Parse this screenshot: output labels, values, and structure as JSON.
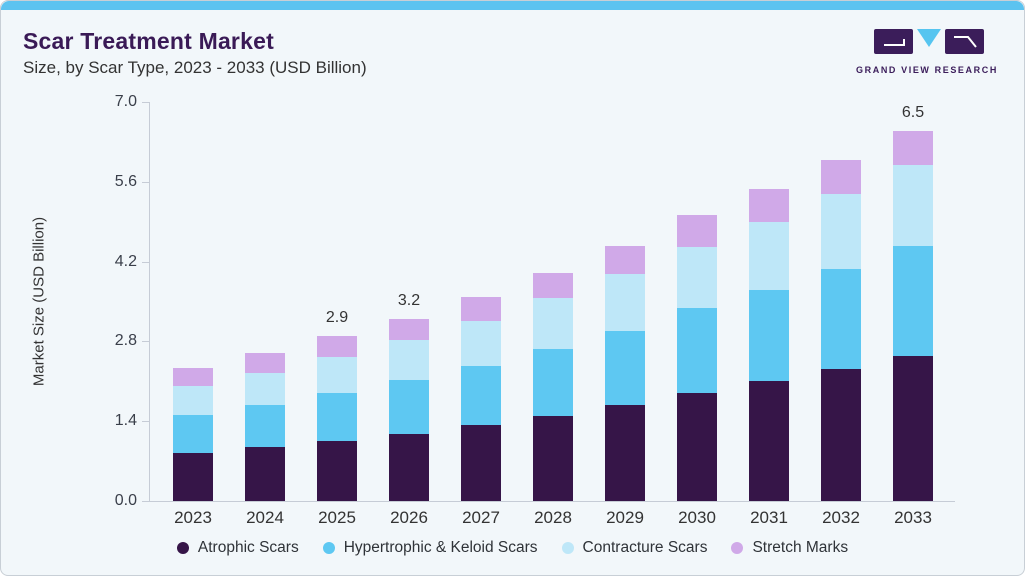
{
  "header": {
    "title": "Scar Treatment Market",
    "subtitle": "Size, by Scar Type, 2023 - 2033 (USD Billion)",
    "brand": {
      "name": "GRAND VIEW RESEARCH"
    }
  },
  "theme": {
    "accent_bar": "#5CC3F0",
    "card_bg": "#F2F7FA",
    "title_color": "#3A1A56",
    "brand_purple": "#3B1D5A",
    "brand_blue": "#56C5F0",
    "axis_color": "#C6CCD6",
    "text_color": "#333333"
  },
  "chart_data": {
    "type": "bar",
    "stacked": true,
    "title": "Scar Treatment Market Size, by Scar Type, 2023 - 2033 (USD Billion)",
    "xlabel": "",
    "ylabel": "Market Size (USD Billion)",
    "categories": [
      "2023",
      "2024",
      "2025",
      "2026",
      "2027",
      "2028",
      "2029",
      "2030",
      "2031",
      "2032",
      "2033"
    ],
    "series": [
      {
        "name": "Atrophic Scars",
        "color": "#361548",
        "values": [
          0.85,
          0.94,
          1.05,
          1.18,
          1.33,
          1.5,
          1.69,
          1.9,
          2.1,
          2.31,
          2.55
        ]
      },
      {
        "name": "Hypertrophic & Keloid Scars",
        "color": "#5EC8F2",
        "values": [
          0.66,
          0.75,
          0.84,
          0.95,
          1.03,
          1.16,
          1.3,
          1.49,
          1.6,
          1.76,
          1.93
        ]
      },
      {
        "name": "Contracture Scars",
        "color": "#BEE7F8",
        "values": [
          0.51,
          0.56,
          0.64,
          0.69,
          0.8,
          0.9,
          0.99,
          1.06,
          1.2,
          1.31,
          1.41
        ]
      },
      {
        "name": "Stretch Marks",
        "color": "#D0A9E8",
        "values": [
          0.32,
          0.35,
          0.37,
          0.38,
          0.42,
          0.44,
          0.49,
          0.57,
          0.57,
          0.61,
          0.61
        ]
      }
    ],
    "totals": [
      2.34,
      2.6,
      2.9,
      3.2,
      3.58,
      4.0,
      4.47,
      5.02,
      5.47,
      5.99,
      6.5
    ],
    "total_labels": [
      {
        "category": "2025",
        "label": "2.9"
      },
      {
        "category": "2026",
        "label": "3.2"
      },
      {
        "category": "2033",
        "label": "6.5"
      }
    ],
    "ylim": [
      0.0,
      7.0
    ],
    "yticks": [
      "0.0",
      "1.4",
      "2.8",
      "4.2",
      "5.6",
      "7.0"
    ],
    "grid": false,
    "legend_position": "bottom"
  }
}
